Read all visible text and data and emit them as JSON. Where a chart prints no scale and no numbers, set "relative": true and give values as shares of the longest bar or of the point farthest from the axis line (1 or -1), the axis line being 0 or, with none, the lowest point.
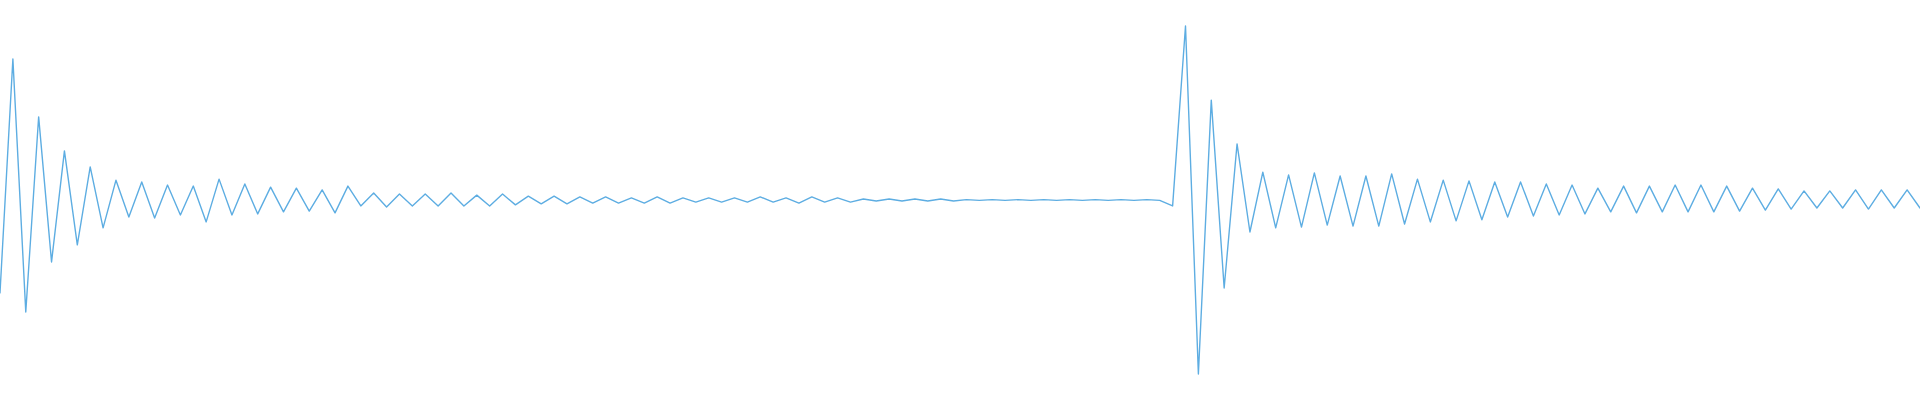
{
  "chart_data": {
    "type": "line",
    "relative": true,
    "categories": [
      null,
      null,
      null,
      null,
      null,
      null,
      null,
      null,
      null,
      null,
      null,
      null,
      null,
      null,
      null,
      null,
      null,
      null,
      null,
      null,
      null,
      null,
      null,
      null,
      null,
      null,
      null,
      null,
      null,
      null,
      null,
      null,
      null,
      null,
      null,
      null,
      null,
      null,
      null,
      null,
      null,
      null,
      null,
      null,
      null,
      null,
      null,
      null,
      null,
      null,
      null,
      null,
      null,
      null,
      null,
      null,
      null,
      null,
      null,
      null,
      null,
      null,
      null,
      null,
      null,
      null,
      null,
      null,
      null,
      null,
      null,
      null,
      null,
      null,
      null,
      null,
      null,
      null,
      null,
      null,
      null,
      null,
      null,
      null,
      null,
      null,
      null,
      null,
      null,
      null,
      null,
      null,
      null,
      null,
      null,
      null,
      null,
      null,
      null,
      null,
      null,
      null,
      null,
      null,
      null,
      null,
      null,
      null,
      null,
      null,
      null,
      null,
      null,
      null,
      null,
      null,
      null,
      null,
      null,
      null,
      null,
      null,
      null,
      null,
      null,
      null,
      null,
      null,
      null,
      null,
      null,
      null,
      null,
      null,
      null,
      null,
      null,
      null,
      null,
      null,
      null,
      null,
      null,
      null,
      null,
      null,
      null,
      null,
      null,
      null
    ],
    "series": [
      {
        "color": "#5dade2",
        "values": [
          0.233,
          0.905,
          0.178,
          0.739,
          0.322,
          0.641,
          0.371,
          0.595,
          0.42,
          0.557,
          0.451,
          0.552,
          0.448,
          0.543,
          0.457,
          0.54,
          0.437,
          0.56,
          0.457,
          0.546,
          0.46,
          0.537,
          0.466,
          0.534,
          0.468,
          0.529,
          0.463,
          0.54,
          0.483,
          0.52,
          0.48,
          0.517,
          0.483,
          0.517,
          0.483,
          0.52,
          0.483,
          0.514,
          0.483,
          0.517,
          0.486,
          0.511,
          0.489,
          0.511,
          0.489,
          0.509,
          0.491,
          0.509,
          0.491,
          0.506,
          0.491,
          0.509,
          0.491,
          0.506,
          0.494,
          0.506,
          0.494,
          0.506,
          0.494,
          0.509,
          0.494,
          0.506,
          0.491,
          0.509,
          0.494,
          0.506,
          0.494,
          0.503,
          0.497,
          0.503,
          0.497,
          0.503,
          0.497,
          0.503,
          0.497,
          0.501,
          0.499,
          0.501,
          0.499,
          0.501,
          0.499,
          0.501,
          0.499,
          0.501,
          0.499,
          0.501,
          0.499,
          0.501,
          0.499,
          0.501,
          0.499,
          0.483,
          1.0,
          0.0,
          0.787,
          0.247,
          0.661,
          0.408,
          0.58,
          0.42,
          0.572,
          0.422,
          0.578,
          0.428,
          0.569,
          0.425,
          0.569,
          0.425,
          0.575,
          0.431,
          0.56,
          0.437,
          0.557,
          0.44,
          0.555,
          0.443,
          0.552,
          0.451,
          0.552,
          0.454,
          0.546,
          0.457,
          0.543,
          0.46,
          0.534,
          0.466,
          0.54,
          0.463,
          0.54,
          0.466,
          0.543,
          0.466,
          0.543,
          0.466,
          0.54,
          0.468,
          0.534,
          0.471,
          0.532,
          0.474,
          0.526,
          0.477,
          0.526,
          0.477,
          0.529,
          0.474,
          0.529,
          0.477,
          0.529,
          0.477
        ]
      }
    ]
  }
}
